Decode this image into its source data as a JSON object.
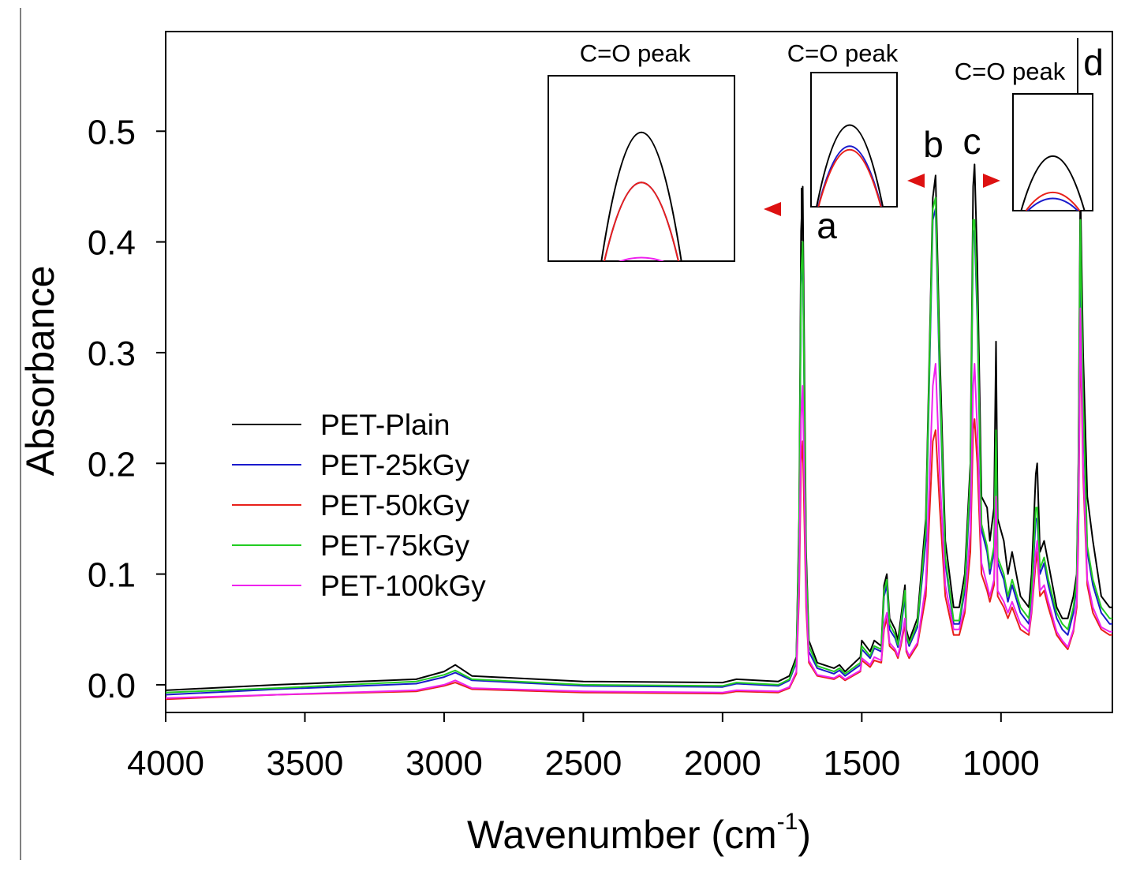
{
  "chart_data": {
    "type": "line",
    "title": "",
    "xlabel": "Wavenumber (cm",
    "xlabel_sup": "-1",
    "xlabel_close": ")",
    "ylabel": "Absorbance",
    "xlim": [
      4000,
      600
    ],
    "ylim": [
      -0.025,
      0.59
    ],
    "xticks": [
      4000,
      3500,
      3000,
      2500,
      2000,
      1500,
      1000
    ],
    "xtick_labels": [
      "4000",
      "3500",
      "3000",
      "2500",
      "2000",
      "1500",
      "1000"
    ],
    "yticks": [
      0.0,
      0.1,
      0.2,
      0.3,
      0.4,
      0.5
    ],
    "ytick_labels": [
      "0.0",
      "0.1",
      "0.2",
      "0.3",
      "0.4",
      "0.5"
    ],
    "legend_position": "lower-left",
    "series": [
      {
        "name": "PET-Plain",
        "color": "#000000",
        "x": [
          4000,
          3600,
          3100,
          3000,
          2960,
          2900,
          2500,
          2000,
          1950,
          1800,
          1760,
          1735,
          1725,
          1718,
          1712,
          1700,
          1690,
          1660,
          1600,
          1580,
          1560,
          1505,
          1500,
          1470,
          1455,
          1430,
          1420,
          1410,
          1400,
          1380,
          1370,
          1360,
          1345,
          1340,
          1330,
          1300,
          1270,
          1245,
          1235,
          1220,
          1200,
          1170,
          1150,
          1130,
          1110,
          1100,
          1095,
          1085,
          1070,
          1050,
          1040,
          1025,
          1018,
          1012,
          990,
          975,
          960,
          930,
          900,
          890,
          875,
          870,
          860,
          845,
          830,
          800,
          780,
          760,
          740,
          728,
          722,
          715,
          705,
          690,
          670,
          640,
          610,
          600
        ],
        "y": [
          -0.005,
          0.0,
          0.005,
          0.012,
          0.018,
          0.008,
          0.003,
          0.002,
          0.005,
          0.003,
          0.008,
          0.025,
          0.15,
          0.41,
          0.45,
          0.12,
          0.04,
          0.02,
          0.015,
          0.018,
          0.012,
          0.025,
          0.04,
          0.03,
          0.04,
          0.035,
          0.09,
          0.1,
          0.06,
          0.05,
          0.04,
          0.06,
          0.09,
          0.05,
          0.04,
          0.06,
          0.15,
          0.44,
          0.46,
          0.3,
          0.13,
          0.07,
          0.07,
          0.1,
          0.2,
          0.45,
          0.47,
          0.38,
          0.17,
          0.16,
          0.13,
          0.16,
          0.31,
          0.15,
          0.13,
          0.1,
          0.12,
          0.08,
          0.07,
          0.1,
          0.19,
          0.2,
          0.12,
          0.13,
          0.11,
          0.07,
          0.06,
          0.06,
          0.08,
          0.1,
          0.2,
          0.45,
          0.3,
          0.17,
          0.13,
          0.08,
          0.07,
          0.07
        ]
      },
      {
        "name": "PET-25kGy",
        "color": "#1a1acc",
        "x": [
          4000,
          3600,
          3100,
          3000,
          2960,
          2900,
          2500,
          2000,
          1950,
          1800,
          1760,
          1735,
          1725,
          1718,
          1712,
          1700,
          1690,
          1660,
          1600,
          1580,
          1560,
          1505,
          1500,
          1470,
          1455,
          1430,
          1420,
          1410,
          1400,
          1380,
          1370,
          1360,
          1345,
          1340,
          1330,
          1300,
          1270,
          1245,
          1235,
          1220,
          1200,
          1170,
          1150,
          1130,
          1110,
          1100,
          1095,
          1085,
          1070,
          1050,
          1040,
          1025,
          1018,
          1012,
          990,
          975,
          960,
          930,
          900,
          890,
          875,
          870,
          860,
          845,
          830,
          800,
          780,
          760,
          740,
          728,
          722,
          715,
          705,
          690,
          670,
          640,
          610,
          600
        ],
        "y": [
          -0.009,
          -0.004,
          0.001,
          0.007,
          0.011,
          0.004,
          -0.001,
          -0.002,
          0.001,
          -0.001,
          0.004,
          0.02,
          0.13,
          0.36,
          0.39,
          0.1,
          0.03,
          0.015,
          0.01,
          0.013,
          0.008,
          0.018,
          0.032,
          0.024,
          0.033,
          0.03,
          0.08,
          0.09,
          0.05,
          0.042,
          0.034,
          0.05,
          0.08,
          0.044,
          0.035,
          0.052,
          0.13,
          0.42,
          0.43,
          0.27,
          0.11,
          0.055,
          0.055,
          0.085,
          0.18,
          0.41,
          0.41,
          0.33,
          0.14,
          0.12,
          0.1,
          0.12,
          0.22,
          0.11,
          0.095,
          0.075,
          0.09,
          0.065,
          0.055,
          0.08,
          0.15,
          0.15,
          0.1,
          0.11,
          0.09,
          0.06,
          0.05,
          0.045,
          0.065,
          0.09,
          0.18,
          0.4,
          0.25,
          0.12,
          0.09,
          0.065,
          0.055,
          0.055
        ]
      },
      {
        "name": "PET-50kGy",
        "color": "#e8201a",
        "x": [
          4000,
          3600,
          3100,
          3000,
          2960,
          2900,
          2500,
          2000,
          1950,
          1800,
          1760,
          1735,
          1725,
          1718,
          1712,
          1700,
          1690,
          1660,
          1600,
          1580,
          1560,
          1505,
          1500,
          1470,
          1455,
          1430,
          1420,
          1410,
          1400,
          1380,
          1370,
          1360,
          1345,
          1340,
          1330,
          1300,
          1270,
          1245,
          1235,
          1220,
          1200,
          1170,
          1150,
          1130,
          1110,
          1100,
          1095,
          1085,
          1070,
          1050,
          1040,
          1025,
          1018,
          1012,
          990,
          975,
          960,
          930,
          900,
          890,
          875,
          870,
          860,
          845,
          830,
          800,
          780,
          760,
          740,
          728,
          722,
          715,
          705,
          690,
          670,
          640,
          610,
          600
        ],
        "y": [
          -0.013,
          -0.009,
          -0.006,
          -0.001,
          0.002,
          -0.004,
          -0.007,
          -0.008,
          -0.006,
          -0.007,
          -0.003,
          0.01,
          0.08,
          0.2,
          0.22,
          0.07,
          0.02,
          0.008,
          0.005,
          0.008,
          0.004,
          0.012,
          0.022,
          0.016,
          0.022,
          0.02,
          0.05,
          0.06,
          0.035,
          0.03,
          0.024,
          0.035,
          0.055,
          0.03,
          0.024,
          0.036,
          0.08,
          0.22,
          0.23,
          0.16,
          0.08,
          0.045,
          0.045,
          0.065,
          0.12,
          0.23,
          0.24,
          0.2,
          0.1,
          0.085,
          0.075,
          0.09,
          0.16,
          0.08,
          0.07,
          0.06,
          0.07,
          0.05,
          0.045,
          0.065,
          0.11,
          0.12,
          0.08,
          0.085,
          0.07,
          0.045,
          0.038,
          0.032,
          0.048,
          0.07,
          0.13,
          0.32,
          0.19,
          0.09,
          0.065,
          0.05,
          0.045,
          0.045
        ]
      },
      {
        "name": "PET-75kGy",
        "color": "#22cc22",
        "x": [
          4000,
          3600,
          3100,
          3000,
          2960,
          2900,
          2500,
          2000,
          1950,
          1800,
          1760,
          1735,
          1725,
          1718,
          1712,
          1700,
          1690,
          1660,
          1600,
          1580,
          1560,
          1505,
          1500,
          1470,
          1455,
          1430,
          1420,
          1410,
          1400,
          1380,
          1370,
          1360,
          1345,
          1340,
          1330,
          1300,
          1270,
          1245,
          1235,
          1220,
          1200,
          1170,
          1150,
          1130,
          1110,
          1100,
          1095,
          1085,
          1070,
          1050,
          1040,
          1025,
          1018,
          1012,
          990,
          975,
          960,
          930,
          900,
          890,
          875,
          870,
          860,
          845,
          830,
          800,
          780,
          760,
          740,
          728,
          722,
          715,
          705,
          690,
          670,
          640,
          610,
          600
        ],
        "y": [
          -0.007,
          -0.003,
          0.003,
          0.009,
          0.013,
          0.005,
          0.0,
          -0.001,
          0.002,
          0.0,
          0.005,
          0.022,
          0.14,
          0.37,
          0.4,
          0.11,
          0.035,
          0.017,
          0.012,
          0.015,
          0.01,
          0.02,
          0.035,
          0.026,
          0.035,
          0.032,
          0.085,
          0.095,
          0.055,
          0.045,
          0.036,
          0.055,
          0.085,
          0.046,
          0.037,
          0.055,
          0.14,
          0.43,
          0.44,
          0.28,
          0.115,
          0.058,
          0.058,
          0.09,
          0.19,
          0.42,
          0.42,
          0.34,
          0.145,
          0.125,
          0.105,
          0.125,
          0.23,
          0.115,
          0.1,
          0.08,
          0.095,
          0.07,
          0.06,
          0.085,
          0.16,
          0.16,
          0.105,
          0.115,
          0.095,
          0.065,
          0.055,
          0.05,
          0.07,
          0.095,
          0.19,
          0.42,
          0.26,
          0.125,
          0.095,
          0.07,
          0.06,
          0.06
        ]
      },
      {
        "name": "PET-100kGy",
        "color": "#ee22ee",
        "x": [
          4000,
          3600,
          3100,
          3000,
          2960,
          2900,
          2500,
          2000,
          1950,
          1800,
          1760,
          1735,
          1725,
          1718,
          1712,
          1700,
          1690,
          1660,
          1600,
          1580,
          1560,
          1505,
          1500,
          1470,
          1455,
          1430,
          1420,
          1410,
          1400,
          1380,
          1370,
          1360,
          1345,
          1340,
          1330,
          1300,
          1270,
          1245,
          1235,
          1220,
          1200,
          1170,
          1150,
          1130,
          1110,
          1100,
          1095,
          1085,
          1070,
          1050,
          1040,
          1025,
          1018,
          1012,
          990,
          975,
          960,
          930,
          900,
          890,
          875,
          870,
          860,
          845,
          830,
          800,
          780,
          760,
          740,
          728,
          722,
          715,
          705,
          690,
          670,
          640,
          610,
          600
        ],
        "y": [
          -0.012,
          -0.009,
          -0.005,
          0.0,
          0.004,
          -0.003,
          -0.006,
          -0.007,
          -0.005,
          -0.006,
          -0.002,
          0.012,
          0.09,
          0.24,
          0.27,
          0.08,
          0.022,
          0.009,
          0.006,
          0.009,
          0.005,
          0.013,
          0.024,
          0.018,
          0.025,
          0.022,
          0.055,
          0.065,
          0.038,
          0.032,
          0.026,
          0.038,
          0.06,
          0.032,
          0.026,
          0.038,
          0.09,
          0.27,
          0.29,
          0.19,
          0.09,
          0.05,
          0.05,
          0.07,
          0.14,
          0.27,
          0.29,
          0.23,
          0.11,
          0.09,
          0.08,
          0.095,
          0.17,
          0.085,
          0.075,
          0.065,
          0.075,
          0.055,
          0.048,
          0.068,
          0.12,
          0.13,
          0.085,
          0.09,
          0.075,
          0.048,
          0.04,
          0.034,
          0.05,
          0.075,
          0.14,
          0.34,
          0.2,
          0.095,
          0.07,
          0.052,
          0.048,
          0.048
        ]
      }
    ],
    "annotations": [
      {
        "text": "a",
        "x": 1650
      },
      {
        "text": "b",
        "x": 1240
      },
      {
        "text": "c",
        "x": 1100
      },
      {
        "text": "d",
        "x": 665
      }
    ],
    "insets": [
      {
        "title": "C=O peak",
        "peak_heights": [
          1.0,
          0.8,
          0.8,
          0.4,
          0.5
        ]
      },
      {
        "title": "C=O peak",
        "peak_heights": [
          1.0,
          0.88,
          0.86,
          0.26,
          0.42
        ]
      },
      {
        "title": "C=O peak",
        "peak_heights": [
          1.0,
          0.72,
          0.76,
          0.24,
          0.36
        ]
      }
    ]
  }
}
